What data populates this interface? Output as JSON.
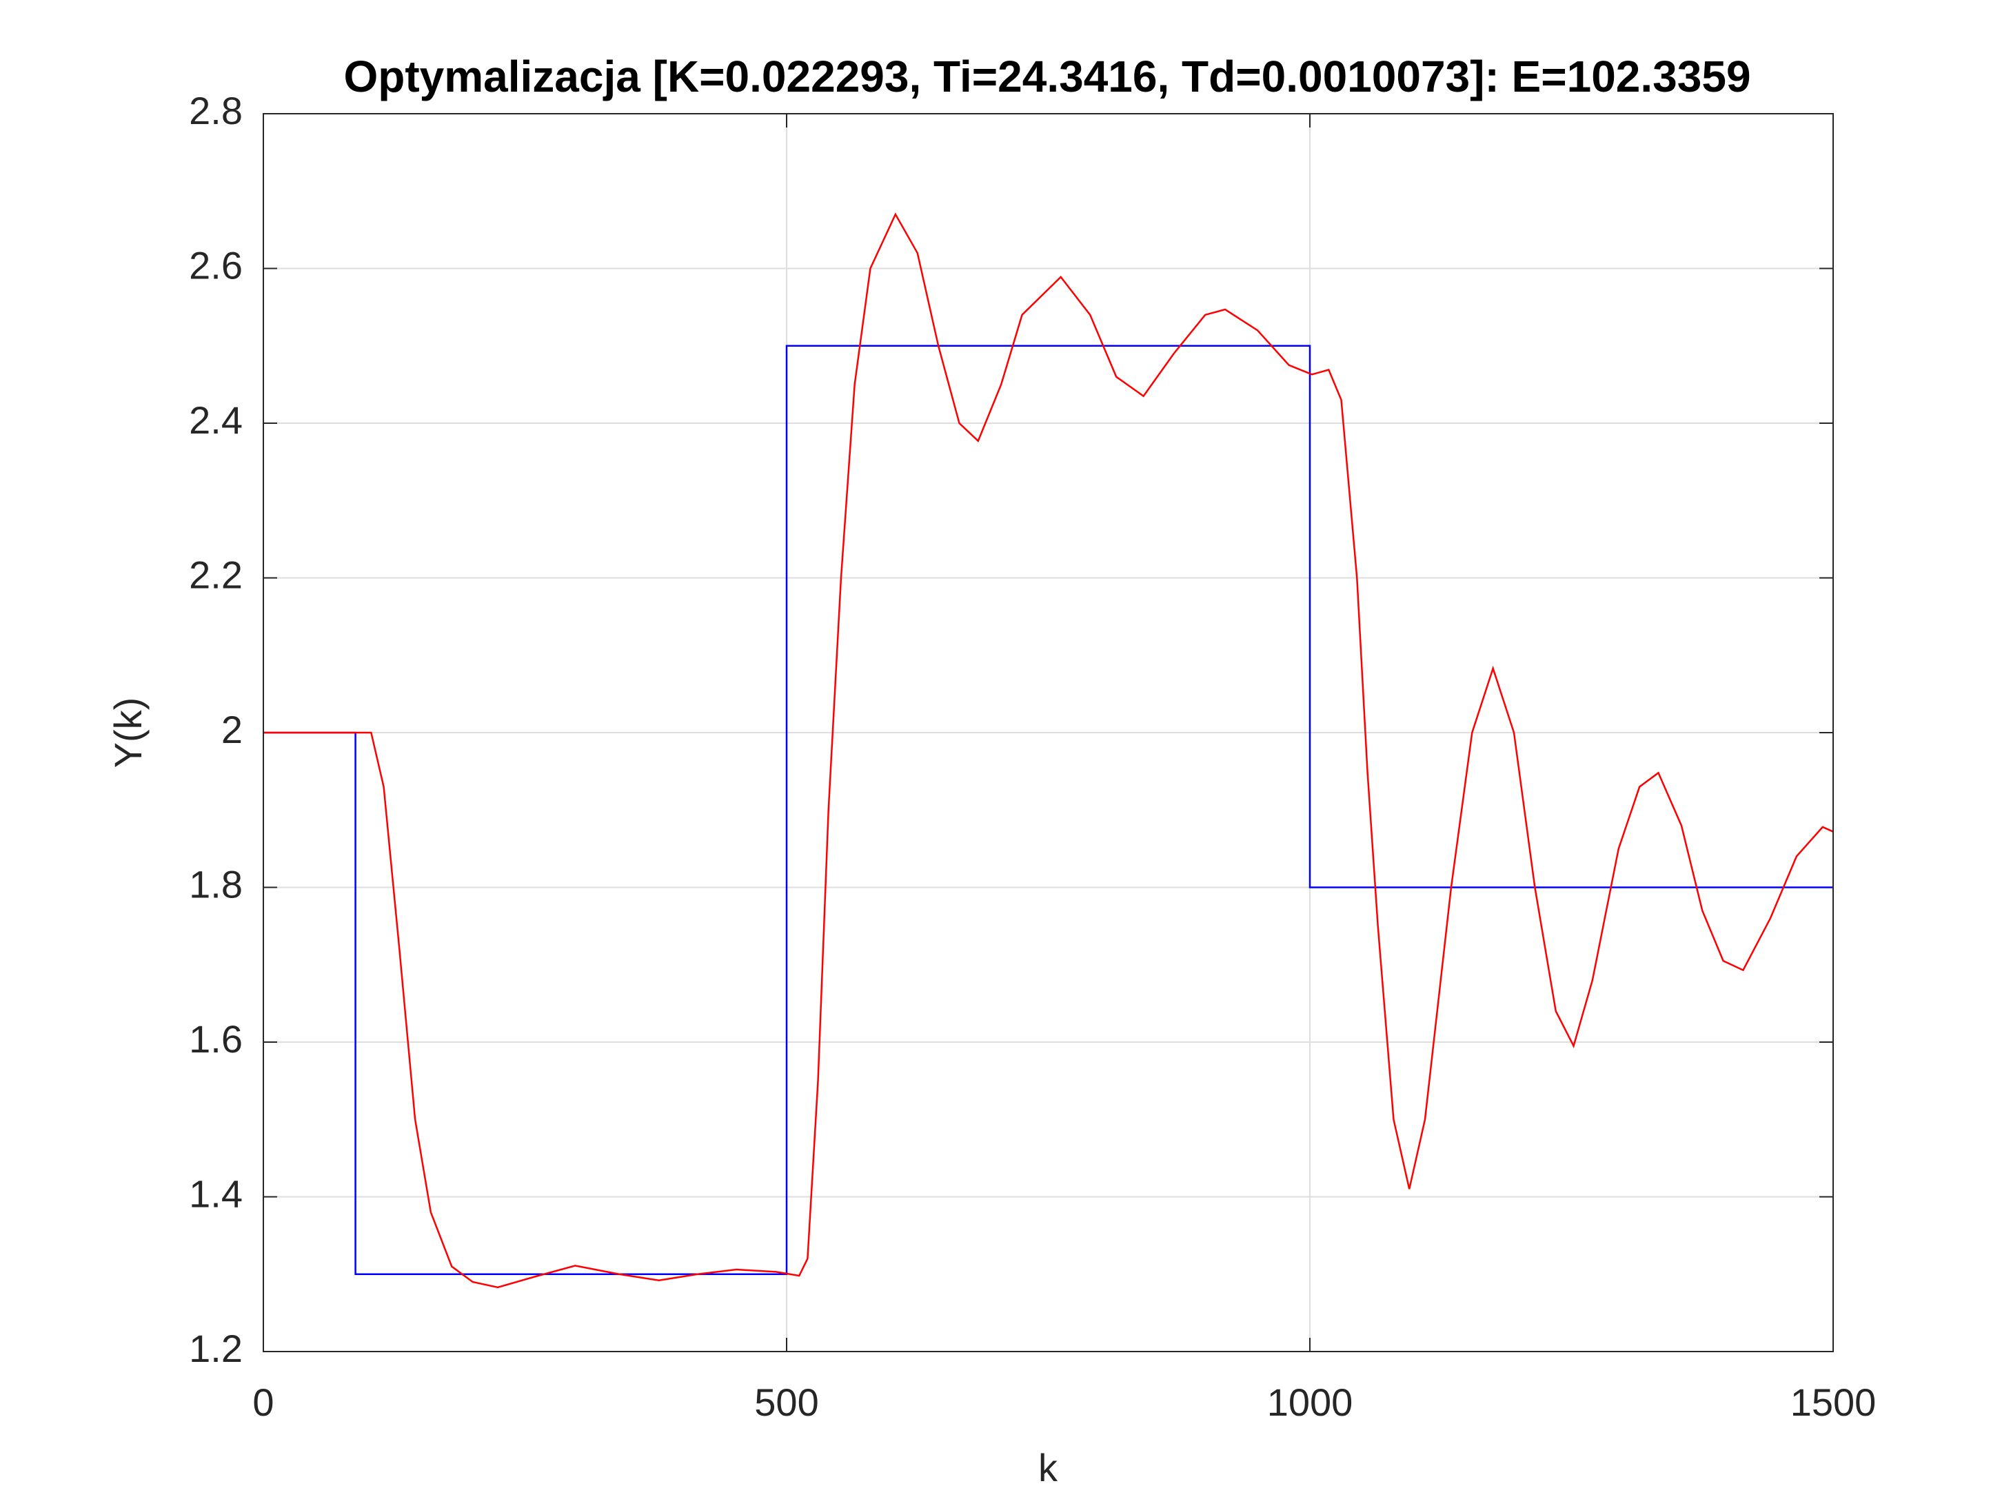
{
  "chart_data": {
    "type": "line",
    "title": "Optymalizacja [K=0.022293, Ti=24.3416, Td=0.0010073]: E=102.3359",
    "xlabel": "k",
    "ylabel": "Y(k)",
    "xlim": [
      0,
      1500
    ],
    "xticks": [
      0,
      500,
      1000,
      1500
    ],
    "ylim": [
      1.2,
      2.8
    ],
    "yticks": [
      1.2,
      1.4,
      1.6,
      1.8,
      2,
      2.2,
      2.4,
      2.6,
      2.8
    ],
    "grid": true,
    "series": [
      {
        "color": "#0000ff",
        "x": [
          0,
          88,
          88,
          500,
          500,
          1000,
          1000,
          1500
        ],
        "values": [
          2,
          2,
          1.3,
          1.3,
          2.5,
          2.5,
          1.8,
          1.8
        ]
      },
      {
        "color": "#ff0000",
        "x": [
          0,
          88,
          103,
          115,
          130,
          145,
          160,
          180,
          200,
          224,
          260,
          298,
          340,
          378,
          415,
          452,
          490,
          512,
          520,
          530,
          540,
          552,
          565,
          580,
          604,
          625,
          645,
          665,
          683,
          705,
          725,
          762,
          790,
          815,
          841,
          870,
          900,
          919,
          950,
          980,
          1002,
          1018,
          1030,
          1045,
          1055,
          1065,
          1080,
          1095,
          1110,
          1135,
          1155,
          1175,
          1195,
          1215,
          1235,
          1252,
          1270,
          1295,
          1315,
          1333,
          1355,
          1375,
          1395,
          1414,
          1440,
          1465,
          1490,
          1500
        ],
        "values": [
          2,
          2,
          2,
          1.93,
          1.72,
          1.5,
          1.38,
          1.31,
          1.29,
          1.283,
          1.297,
          1.311,
          1.3,
          1.292,
          1.3,
          1.306,
          1.303,
          1.298,
          1.32,
          1.55,
          1.9,
          2.2,
          2.45,
          2.6,
          2.67,
          2.62,
          2.5,
          2.4,
          2.377,
          2.45,
          2.54,
          2.589,
          2.54,
          2.46,
          2.435,
          2.49,
          2.54,
          2.547,
          2.52,
          2.475,
          2.463,
          2.469,
          2.43,
          2.2,
          1.95,
          1.75,
          1.5,
          1.41,
          1.5,
          1.8,
          2.0,
          2.083,
          2.0,
          1.8,
          1.64,
          1.595,
          1.68,
          1.85,
          1.93,
          1.948,
          1.88,
          1.77,
          1.705,
          1.693,
          1.76,
          1.84,
          1.878,
          1.872
        ]
      }
    ]
  }
}
